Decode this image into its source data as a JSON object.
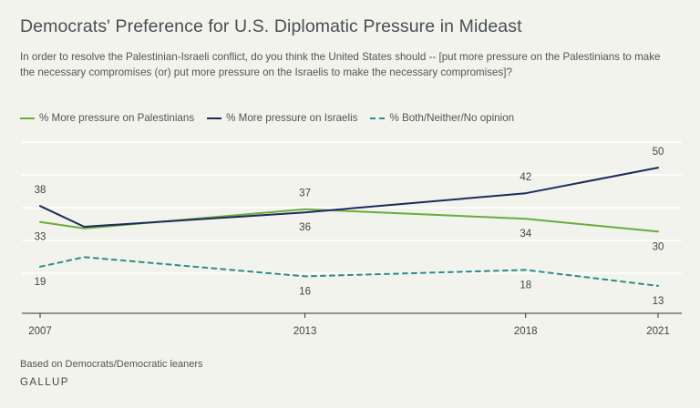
{
  "title": "Democrats' Preference for U.S. Diplomatic Pressure in Mideast",
  "subtitle": "In order to resolve the Palestinian-Israeli conflict, do you think the United States should -- [put more pressure on the Palestinians to make the necessary compromises (or) put more pressure on the Israelis to make the necessary compromises]?",
  "footnote": "Based on Democrats/Democratic leaners",
  "brand": "GALLUP",
  "colors": {
    "palestinians": "#6aac3c",
    "israelis": "#1e2a5e",
    "neither": "#2f8c86",
    "axis": "#555555",
    "grid": "#ffffff"
  },
  "chart_data": {
    "type": "line",
    "title": "Democrats' Preference for U.S. Diplomatic Pressure in Mideast",
    "x_ticks": [
      "2007",
      "2013",
      "2018",
      "2021"
    ],
    "xlim": [
      2007,
      2021
    ],
    "ylim": [
      5,
      58
    ],
    "grid": true,
    "legend": "top-left",
    "series": [
      {
        "name": "% More pressure on Palestinians",
        "style": "solid",
        "color": "#6aac3c",
        "points": [
          {
            "x": 2007,
            "y": 33,
            "label": "33"
          },
          {
            "x": 2008,
            "y": 31
          },
          {
            "x": 2013,
            "y": 37,
            "label": "37"
          },
          {
            "x": 2018,
            "y": 34,
            "label": "34"
          },
          {
            "x": 2021,
            "y": 30,
            "label": "30"
          }
        ]
      },
      {
        "name": "% More pressure on Israelis",
        "style": "solid",
        "color": "#1e2a5e",
        "points": [
          {
            "x": 2007,
            "y": 38,
            "label": "38"
          },
          {
            "x": 2008,
            "y": 31.5
          },
          {
            "x": 2013,
            "y": 36,
            "label": "36"
          },
          {
            "x": 2018,
            "y": 42,
            "label": "42"
          },
          {
            "x": 2021,
            "y": 50,
            "label": "50"
          }
        ]
      },
      {
        "name": "% Both/Neither/No opinion",
        "style": "dashed",
        "color": "#2f8c86",
        "points": [
          {
            "x": 2007,
            "y": 19,
            "label": "19"
          },
          {
            "x": 2008,
            "y": 22
          },
          {
            "x": 2013,
            "y": 16,
            "label": "16"
          },
          {
            "x": 2018,
            "y": 18,
            "label": "18"
          },
          {
            "x": 2021,
            "y": 13,
            "label": "13"
          }
        ]
      }
    ]
  }
}
